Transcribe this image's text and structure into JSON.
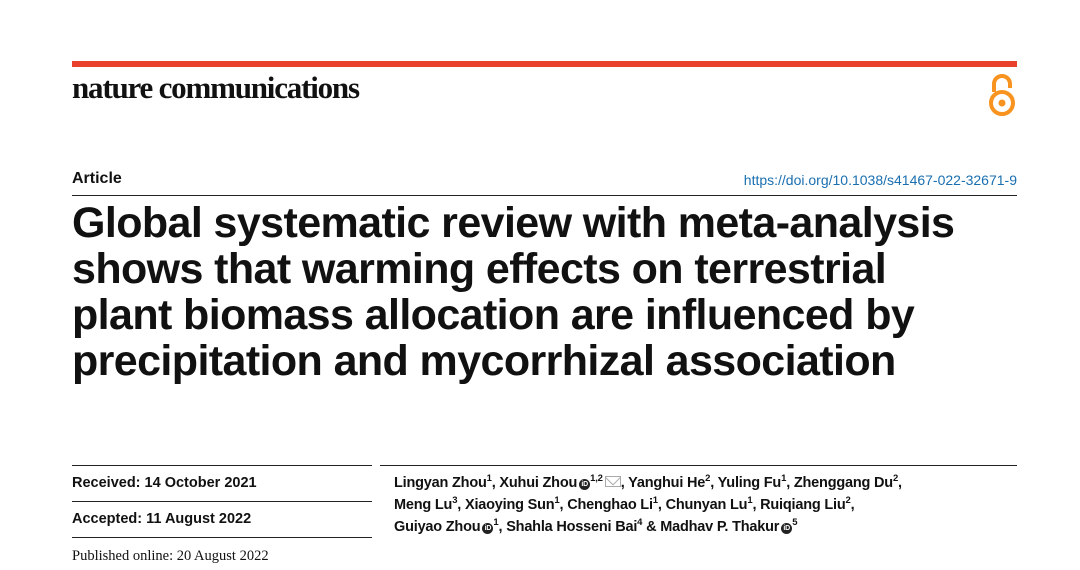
{
  "journal": "nature communications",
  "brand_colors": {
    "rule": "#e8412c",
    "open_access": "#f7931e",
    "doi": "#1a6fb0"
  },
  "open_access_icon": "open-access-lock-icon",
  "article_type": "Article",
  "doi": "https://doi.org/10.1038/s41467-022-32671-9",
  "title_lines": [
    "Global systematic review with meta-analysis",
    "shows that warming effects on terrestrial",
    "plant biomass allocation are influenced by",
    "precipitation and mycorrhizal association"
  ],
  "received": "Received: 14 October 2021",
  "accepted": "Accepted: 11 August 2022",
  "published": "Published online: 20 August 2022",
  "authors": [
    {
      "name": "Lingyan Zhou",
      "aff": "1",
      "sep": ", "
    },
    {
      "name": "Xuhui Zhou",
      "aff": "1,2",
      "orcid": true,
      "mail": true,
      "sep": ", "
    },
    {
      "name": "Yanghui He",
      "aff": "2",
      "sep": ", "
    },
    {
      "name": "Yuling Fu",
      "aff": "1",
      "sep": ", "
    },
    {
      "name": "Zhenggang Du",
      "aff": "2",
      "sep": ", "
    },
    {
      "name": "Meng Lu",
      "aff": "3",
      "sep": ", "
    },
    {
      "name": "Xiaoying Sun",
      "aff": "1",
      "sep": ", "
    },
    {
      "name": "Chenghao Li",
      "aff": "1",
      "sep": ", "
    },
    {
      "name": "Chunyan Lu",
      "aff": "1",
      "sep": ", "
    },
    {
      "name": "Ruiqiang Liu",
      "aff": "2",
      "sep": ", "
    },
    {
      "name": "Guiyao Zhou",
      "aff": "1",
      "orcid": true,
      "sep": ", "
    },
    {
      "name": "Shahla Hosseni Bai",
      "aff": "4",
      "sep": " & "
    },
    {
      "name": "Madhav P. Thakur",
      "aff": "5",
      "orcid": true,
      "sep": ""
    }
  ]
}
